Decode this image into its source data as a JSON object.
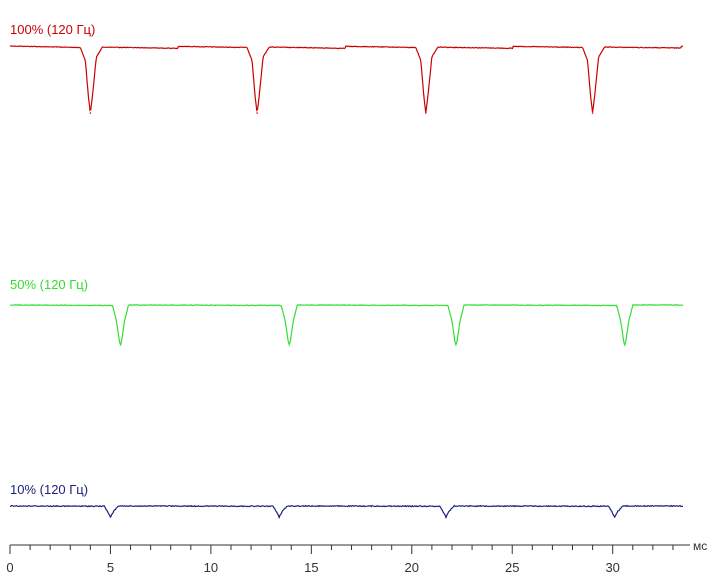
{
  "chart_data": {
    "type": "line",
    "title": "",
    "xlabel": "",
    "x_unit": "мс",
    "ylabel": "",
    "xlim": [
      0,
      33.5
    ],
    "x_major_ticks": [
      0,
      5,
      10,
      15,
      20,
      25,
      30
    ],
    "x_tick_labels": [
      "0",
      "5",
      "10",
      "15",
      "20",
      "25",
      "30"
    ],
    "x_minor_step": 1,
    "grid": false,
    "legend": "none",
    "y_scale": "relative brightness (no axis printed)",
    "series": [
      {
        "name": "100% (120 Гц)",
        "color": "#cc0000",
        "baseline": 1.0,
        "dip_bottom": 0.0,
        "dip_centers": [
          4.0,
          12.3,
          20.7,
          29.0
        ],
        "x": [
          0.0,
          3.5,
          3.75,
          3.9,
          4.0,
          4.1,
          4.3,
          4.6,
          11.8,
          12.05,
          12.2,
          12.3,
          12.4,
          12.6,
          12.9,
          20.2,
          20.45,
          20.6,
          20.7,
          20.8,
          21.0,
          21.3,
          28.5,
          28.75,
          28.9,
          29.0,
          29.1,
          29.3,
          29.6,
          33.5
        ],
        "y": [
          1.0,
          0.99,
          0.8,
          0.25,
          0.0,
          0.25,
          0.85,
          1.0,
          0.99,
          0.8,
          0.25,
          0.0,
          0.25,
          0.85,
          1.0,
          0.99,
          0.8,
          0.25,
          0.0,
          0.25,
          0.85,
          1.0,
          0.99,
          0.8,
          0.25,
          0.0,
          0.25,
          0.85,
          1.0,
          1.0
        ]
      },
      {
        "name": "50% (120 Гц)",
        "color": "#33dd33",
        "baseline": 1.0,
        "dip_bottom": 0.0,
        "dip_centers": [
          5.5,
          13.9,
          22.2,
          30.6
        ],
        "x": [
          0.0,
          5.1,
          5.3,
          5.45,
          5.5,
          5.55,
          5.7,
          5.9,
          13.5,
          13.7,
          13.85,
          13.9,
          13.95,
          14.1,
          14.3,
          21.8,
          22.0,
          22.15,
          22.2,
          22.25,
          22.4,
          22.6,
          30.2,
          30.4,
          30.55,
          30.6,
          30.65,
          30.8,
          31.0,
          33.5
        ],
        "y": [
          1.0,
          0.99,
          0.6,
          0.08,
          0.0,
          0.08,
          0.6,
          1.0,
          0.99,
          0.6,
          0.08,
          0.0,
          0.08,
          0.6,
          1.0,
          0.99,
          0.6,
          0.08,
          0.0,
          0.08,
          0.6,
          1.0,
          0.99,
          0.6,
          0.08,
          0.0,
          0.08,
          0.6,
          1.0,
          1.0
        ]
      },
      {
        "name": "10% (120 Гц)",
        "color": "#1a237e",
        "baseline": 1.0,
        "dip_bottom": 0.0,
        "dip_centers": [
          5.0,
          13.4,
          21.7,
          30.1
        ],
        "x": [
          0.0,
          4.7,
          4.85,
          5.0,
          5.15,
          5.4,
          13.1,
          13.25,
          13.4,
          13.55,
          13.8,
          21.4,
          21.55,
          21.7,
          21.85,
          22.1,
          29.8,
          29.95,
          30.1,
          30.25,
          30.5,
          33.5
        ],
        "y": [
          1.0,
          0.98,
          0.5,
          0.0,
          0.5,
          1.0,
          0.98,
          0.5,
          0.0,
          0.5,
          1.0,
          0.98,
          0.5,
          0.0,
          0.5,
          1.0,
          0.98,
          0.5,
          0.0,
          0.5,
          1.0,
          1.0
        ]
      }
    ]
  }
}
